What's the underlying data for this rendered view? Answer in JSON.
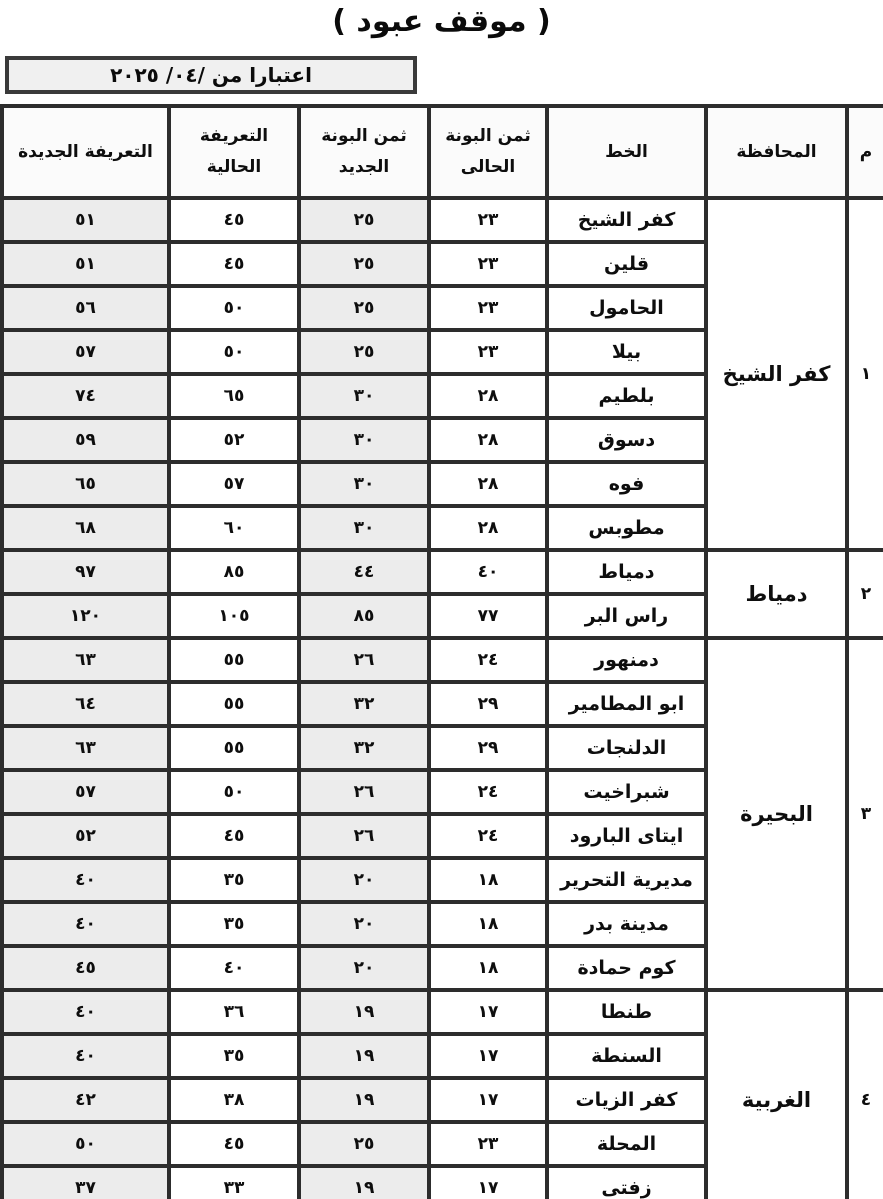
{
  "page": {
    "title": "( موقف عبود )",
    "effective_from": "اعتبارا من   /٠٤/ ٢٠٢٥"
  },
  "colors": {
    "border": "#2d2d2d",
    "shaded_cell": "#ececec",
    "date_box_bg": "#f0f0f0",
    "text": "#0e0e0e"
  },
  "table": {
    "headers": {
      "index": "م",
      "governorate": "المحافظة",
      "line": "الخط",
      "bona_current_line1": "ثمن البونة",
      "bona_current_line2": "الحالى",
      "bona_new_line1": "ثمن البونة",
      "bona_new_line2": "الجديد",
      "tariff_current": "التعريفة الحالية",
      "tariff_new": "التعريفة الجديدة"
    },
    "groups": [
      {
        "index": "١",
        "governorate": "كفر الشيخ",
        "rows": [
          {
            "line": "كفر الشيخ",
            "bona_current": "٢٣",
            "bona_new": "٢٥",
            "tariff_current": "٤٥",
            "tariff_new": "٥١"
          },
          {
            "line": "قلين",
            "bona_current": "٢٣",
            "bona_new": "٢٥",
            "tariff_current": "٤٥",
            "tariff_new": "٥١"
          },
          {
            "line": "الحامول",
            "bona_current": "٢٣",
            "bona_new": "٢٥",
            "tariff_current": "٥٠",
            "tariff_new": "٥٦"
          },
          {
            "line": "بيلا",
            "bona_current": "٢٣",
            "bona_new": "٢٥",
            "tariff_current": "٥٠",
            "tariff_new": "٥٧"
          },
          {
            "line": "بلطيم",
            "bona_current": "٢٨",
            "bona_new": "٣٠",
            "tariff_current": "٦٥",
            "tariff_new": "٧٤"
          },
          {
            "line": "دسوق",
            "bona_current": "٢٨",
            "bona_new": "٣٠",
            "tariff_current": "٥٢",
            "tariff_new": "٥٩"
          },
          {
            "line": "فوه",
            "bona_current": "٢٨",
            "bona_new": "٣٠",
            "tariff_current": "٥٧",
            "tariff_new": "٦٥"
          },
          {
            "line": "مطوبس",
            "bona_current": "٢٨",
            "bona_new": "٣٠",
            "tariff_current": "٦٠",
            "tariff_new": "٦٨"
          }
        ]
      },
      {
        "index": "٢",
        "governorate": "دمياط",
        "rows": [
          {
            "line": "دمياط",
            "bona_current": "٤٠",
            "bona_new": "٤٤",
            "tariff_current": "٨٥",
            "tariff_new": "٩٧"
          },
          {
            "line": "راس البر",
            "bona_current": "٧٧",
            "bona_new": "٨٥",
            "tariff_current": "١٠٥",
            "tariff_new": "١٢٠"
          }
        ]
      },
      {
        "index": "٣",
        "governorate": "البحيرة",
        "rows": [
          {
            "line": "دمنهور",
            "bona_current": "٢٤",
            "bona_new": "٢٦",
            "tariff_current": "٥٥",
            "tariff_new": "٦٣"
          },
          {
            "line": "ابو المطامير",
            "bona_current": "٢٩",
            "bona_new": "٣٢",
            "tariff_current": "٥٥",
            "tariff_new": "٦٤"
          },
          {
            "line": "الدلنجات",
            "bona_current": "٢٩",
            "bona_new": "٣٢",
            "tariff_current": "٥٥",
            "tariff_new": "٦٣"
          },
          {
            "line": "شبراخيت",
            "bona_current": "٢٤",
            "bona_new": "٢٦",
            "tariff_current": "٥٠",
            "tariff_new": "٥٧"
          },
          {
            "line": "ايتاى البارود",
            "bona_current": "٢٤",
            "bona_new": "٢٦",
            "tariff_current": "٤٥",
            "tariff_new": "٥٢"
          },
          {
            "line": "مديرية التحرير",
            "bona_current": "١٨",
            "bona_new": "٢٠",
            "tariff_current": "٣٥",
            "tariff_new": "٤٠"
          },
          {
            "line": "مدينة بدر",
            "bona_current": "١٨",
            "bona_new": "٢٠",
            "tariff_current": "٣٥",
            "tariff_new": "٤٠"
          },
          {
            "line": "كوم حمادة",
            "bona_current": "١٨",
            "bona_new": "٢٠",
            "tariff_current": "٤٠",
            "tariff_new": "٤٥"
          }
        ]
      },
      {
        "index": "٤",
        "governorate": "الغربية",
        "rows": [
          {
            "line": "طنطا",
            "bona_current": "١٧",
            "bona_new": "١٩",
            "tariff_current": "٣٦",
            "tariff_new": "٤٠"
          },
          {
            "line": "السنطة",
            "bona_current": "١٧",
            "bona_new": "١٩",
            "tariff_current": "٣٥",
            "tariff_new": "٤٠"
          },
          {
            "line": "كفر الزيات",
            "bona_current": "١٧",
            "bona_new": "١٩",
            "tariff_current": "٣٨",
            "tariff_new": "٤٢"
          },
          {
            "line": "المحلة",
            "bona_current": "٢٣",
            "bona_new": "٢٥",
            "tariff_current": "٤٥",
            "tariff_new": "٥٠"
          },
          {
            "line": "زفتى",
            "bona_current": "١٧",
            "bona_new": "١٩",
            "tariff_current": "٣٣",
            "tariff_new": "٣٧"
          }
        ]
      }
    ]
  }
}
